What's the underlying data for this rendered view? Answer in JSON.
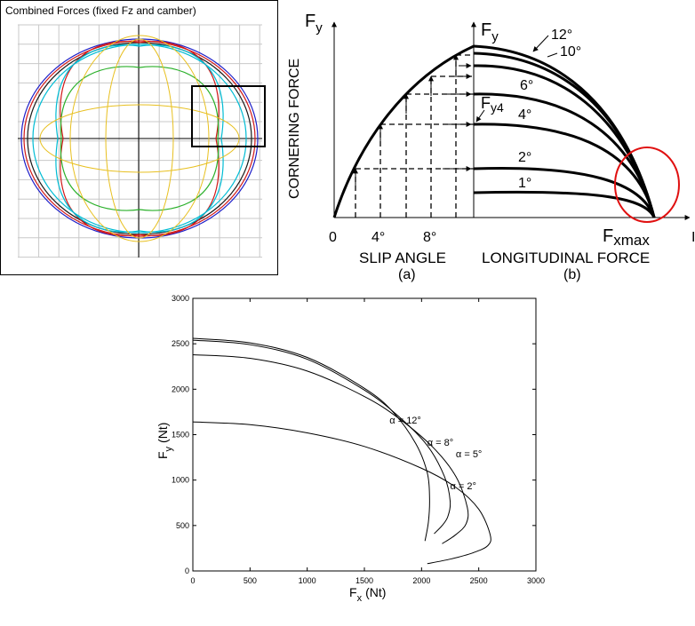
{
  "panel_a": {
    "title": "Combined Forces (fixed Fz and camber)",
    "colors": [
      "#1e1ec8",
      "#d01818",
      "#1a1a1a",
      "#00bcd4",
      "#2ab02a",
      "#e8c020"
    ]
  },
  "panel_b": {
    "y_axis_symbol_left": "F",
    "y_axis_sub_left": "y",
    "y_axis_symbol_right": "F",
    "y_axis_sub_right": "y",
    "ylabel": "CORNERING FORCE",
    "x_ticks": [
      "0",
      "4°",
      "8°"
    ],
    "section_a_label": "SLIP ANGLE",
    "section_a_tag": "(a)",
    "section_b_label": "LONGITUDINAL FORCE",
    "section_b_tag": "(b)",
    "fy4_main": "F",
    "fy4_sub": "y4",
    "fxmax_main": "F",
    "fxmax_sub": "xmax",
    "x_axis_end_label": "I",
    "curve_labels": [
      "12°",
      "10°",
      "6°",
      "4°",
      "2°",
      "1°"
    ],
    "highlight_color": "#e01010"
  },
  "chart_data": {
    "type": "line",
    "title": "",
    "xlabel_main": "F",
    "xlabel_sub": "x",
    "xlabel_unit": "(Nt)",
    "ylabel_main": "F",
    "ylabel_sub": "y",
    "ylabel_unit": "(Nt)",
    "xlim": [
      0,
      3000
    ],
    "ylim": [
      0,
      3000
    ],
    "xticks": [
      0,
      500,
      1000,
      1500,
      2000,
      2500,
      3000
    ],
    "yticks": [
      0,
      500,
      1000,
      1500,
      2000,
      2500,
      3000
    ],
    "grid": false,
    "series": [
      {
        "name": "α = 2°",
        "x": [
          0,
          500,
          1000,
          1500,
          2000,
          2300,
          2500,
          2600,
          2580,
          2450,
          2250,
          2050
        ],
        "y": [
          1640,
          1610,
          1520,
          1370,
          1130,
          920,
          680,
          400,
          280,
          200,
          130,
          80
        ]
      },
      {
        "name": "α = 5°",
        "x": [
          0,
          500,
          1000,
          1500,
          1800,
          2100,
          2300,
          2400,
          2390,
          2300,
          2180
        ],
        "y": [
          2380,
          2340,
          2200,
          1920,
          1680,
          1360,
          1040,
          700,
          520,
          400,
          300
        ]
      },
      {
        "name": "α = 8°",
        "x": [
          0,
          500,
          1000,
          1500,
          1800,
          2050,
          2200,
          2250,
          2230,
          2180,
          2110
        ],
        "y": [
          2540,
          2490,
          2330,
          1990,
          1700,
          1380,
          1040,
          770,
          600,
          500,
          410
        ]
      },
      {
        "name": "α = 12°",
        "x": [
          0,
          500,
          1000,
          1500,
          1750,
          1950,
          2050,
          2070,
          2060,
          2030
        ],
        "y": [
          2560,
          2510,
          2350,
          2010,
          1750,
          1400,
          1080,
          800,
          540,
          330
        ]
      }
    ]
  }
}
